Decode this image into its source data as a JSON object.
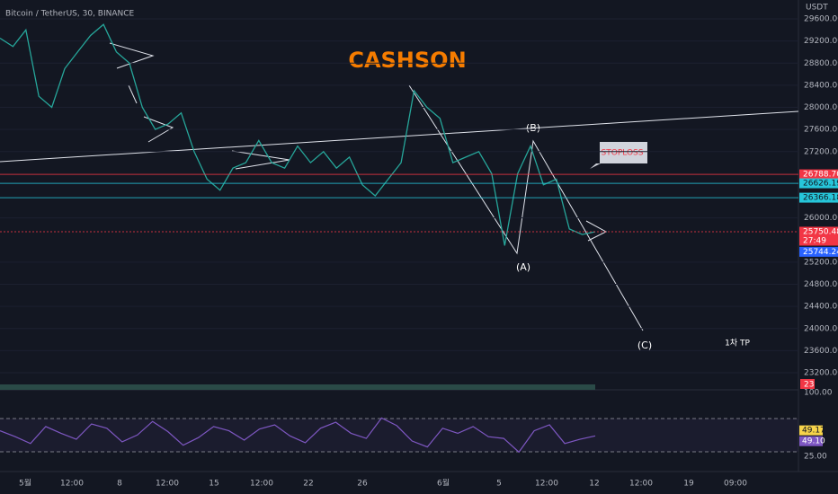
{
  "header": {
    "title": "Bitcoin / TetherUS, 30, BINANCE",
    "currency": "USDT"
  },
  "price_axis": {
    "ticks": [
      {
        "value": 29600,
        "label": "29600.00"
      },
      {
        "value": 29200,
        "label": "29200.00"
      },
      {
        "value": 28800,
        "label": "28800.00"
      },
      {
        "value": 28400,
        "label": "28400.00"
      },
      {
        "value": 28000,
        "label": "28000.00"
      },
      {
        "value": 27600,
        "label": "27600.00"
      },
      {
        "value": 27200,
        "label": "27200.00"
      },
      {
        "value": 26000,
        "label": "26000.00"
      },
      {
        "value": 25200,
        "label": "25200.00"
      },
      {
        "value": 24800,
        "label": "24800.00"
      },
      {
        "value": 24400,
        "label": "24400.00"
      },
      {
        "value": 24000,
        "label": "24000.00"
      },
      {
        "value": 23600,
        "label": "23600.00"
      },
      {
        "value": 23200,
        "label": "23200.00"
      }
    ]
  },
  "price_tags": [
    {
      "value": 26788.7,
      "label": "26788.70",
      "color": "#f23645"
    },
    {
      "value": 26626.19,
      "label": "26626.19",
      "color": "#26c6da"
    },
    {
      "value": 26366.18,
      "label": "26366.18",
      "color": "#26c6da"
    },
    {
      "value": 25750.48,
      "label": "25750.48",
      "color": "#f23645",
      "countdown": "27:49"
    },
    {
      "value": 25744.24,
      "label": "25744.24",
      "color": "#2962ff"
    }
  ],
  "price_path": [
    29250,
    29100,
    29400,
    28200,
    28000,
    28700,
    29000,
    29300,
    29500,
    29000,
    28800,
    28000,
    27600,
    27700,
    27900,
    27200,
    26700,
    26500,
    26900,
    27000,
    27400,
    27000,
    26900,
    27300,
    27000,
    27200,
    26900,
    27100,
    26600,
    26400,
    26700,
    27000,
    28300,
    28000,
    27800,
    27000,
    27100,
    27200,
    26800,
    25500,
    26800,
    27300,
    26600,
    26700,
    25800,
    25700,
    25750
  ],
  "volume": {
    "label": "23"
  },
  "rsi": {
    "ticks": [
      {
        "value": 100,
        "label": "100.00"
      },
      {
        "value": 25,
        "label": "25.00"
      }
    ],
    "values": [
      55,
      48,
      40,
      60,
      52,
      45,
      63,
      58,
      42,
      50,
      66,
      54,
      38,
      47,
      60,
      55,
      44,
      57,
      62,
      49,
      41,
      58,
      65,
      52,
      46,
      70,
      61,
      43,
      36,
      58,
      52,
      60,
      48,
      46,
      30,
      55,
      62,
      40,
      45,
      49
    ],
    "tags": [
      {
        "value": 49.17,
        "label": "49.17",
        "color": "#f7d44a"
      },
      {
        "value": 49.1,
        "label": "49.10",
        "color": "#7e57c2"
      }
    ]
  },
  "time_axis": [
    "5월",
    "12:00",
    "8",
    "12:00",
    "15",
    "12:00",
    "22",
    "26",
    "6월",
    "5",
    "12:00",
    "12",
    "12:00",
    "19",
    "09:00"
  ],
  "annotations": {
    "brand": "CASHSON",
    "wave_a": "(A)",
    "wave_b": "(B)",
    "wave_c": "(C)",
    "target": "1차 TP",
    "stoploss": "STOPLOSS"
  }
}
